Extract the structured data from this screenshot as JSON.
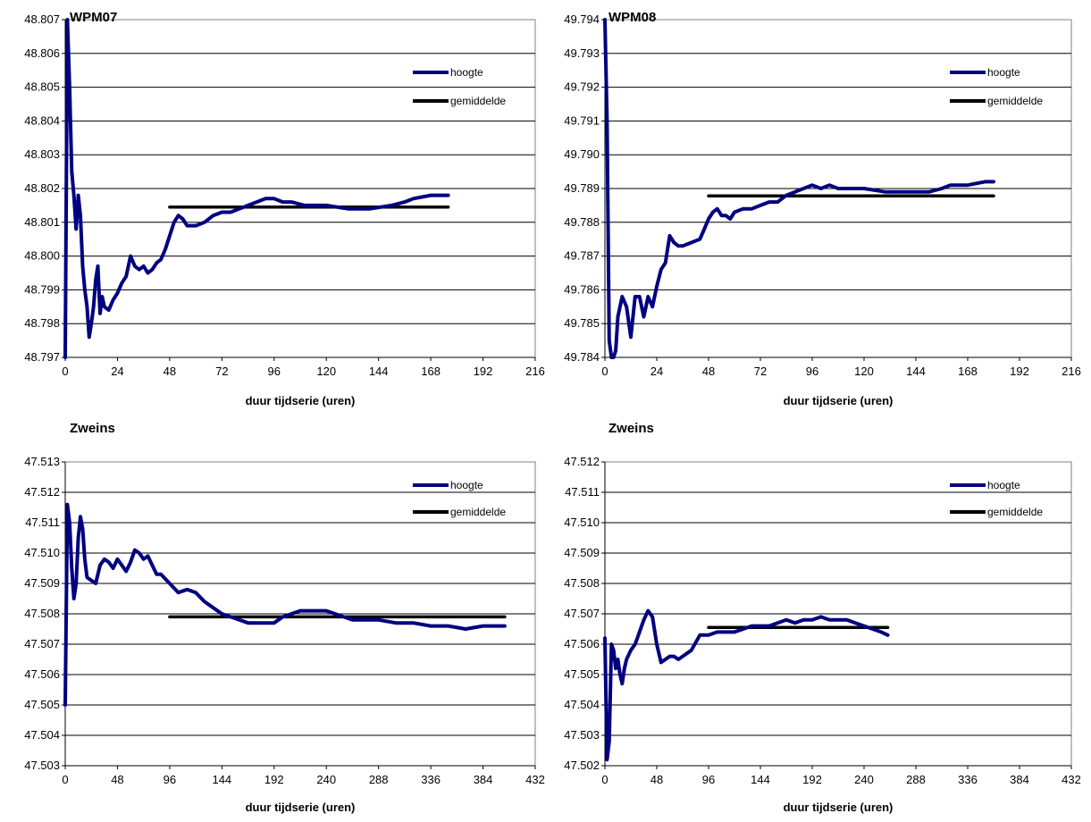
{
  "chart_data": [
    {
      "type": "line",
      "title": "WPM07",
      "xlabel": "duur tijdserie (uren)",
      "ylabel": "",
      "xlim": [
        0,
        216
      ],
      "ylim": [
        48.797,
        48.807
      ],
      "xticks": [
        "0",
        "24",
        "48",
        "72",
        "96",
        "120",
        "144",
        "168",
        "192",
        "216"
      ],
      "yticks": [
        "48.807",
        "48.806",
        "48.805",
        "48.804",
        "48.803",
        "48.802",
        "48.801",
        "48.800",
        "48.799",
        "48.798",
        "48.797"
      ],
      "grid": "horizontal",
      "legend_position": "top-right",
      "series": [
        {
          "name": "hoogte",
          "color": "#000080",
          "x": [
            0,
            1,
            2,
            3,
            4,
            5,
            6,
            7,
            8,
            9,
            10,
            11,
            12,
            13,
            14,
            15,
            16,
            17,
            18,
            20,
            22,
            24,
            26,
            28,
            30,
            32,
            34,
            36,
            38,
            40,
            42,
            44,
            46,
            48,
            50,
            52,
            54,
            56,
            60,
            64,
            68,
            72,
            76,
            80,
            84,
            88,
            92,
            96,
            100,
            104,
            110,
            120,
            130,
            140,
            150,
            156,
            160,
            168,
            176
          ],
          "y": [
            48.797,
            48.807,
            48.805,
            48.8025,
            48.8018,
            48.8008,
            48.8018,
            48.8012,
            48.7997,
            48.799,
            48.7985,
            48.7976,
            48.798,
            48.7985,
            48.7993,
            48.7997,
            48.7983,
            48.7988,
            48.7985,
            48.7984,
            48.7987,
            48.7989,
            48.7992,
            48.7994,
            48.8,
            48.7997,
            48.7996,
            48.7997,
            48.7995,
            48.7996,
            48.7998,
            48.7999,
            48.8002,
            48.8006,
            48.801,
            48.8012,
            48.8011,
            48.8009,
            48.8009,
            48.801,
            48.8012,
            48.8013,
            48.8013,
            48.8014,
            48.8015,
            48.8016,
            48.8017,
            48.8017,
            48.8016,
            48.8016,
            48.8015,
            48.8015,
            48.8014,
            48.8014,
            48.8015,
            48.8016,
            48.8017,
            48.8018,
            48.8018
          ]
        },
        {
          "name": "gemiddelde",
          "color": "#000000",
          "x": [
            48,
            176
          ],
          "y": [
            48.80145,
            48.80145
          ]
        }
      ]
    },
    {
      "type": "line",
      "title": "WPM08",
      "xlabel": "duur tijdserie (uren)",
      "ylabel": "",
      "xlim": [
        0,
        216
      ],
      "ylim": [
        49.784,
        49.794
      ],
      "xticks": [
        "0",
        "24",
        "48",
        "72",
        "96",
        "120",
        "144",
        "168",
        "192",
        "216"
      ],
      "yticks": [
        "49.794",
        "49.793",
        "49.792",
        "49.791",
        "49.790",
        "49.789",
        "49.788",
        "49.787",
        "49.786",
        "49.785",
        "49.784"
      ],
      "grid": "horizontal",
      "legend_position": "top-right",
      "series": [
        {
          "name": "hoogte",
          "color": "#000080",
          "x": [
            0,
            1,
            2,
            3,
            4,
            5,
            6,
            8,
            10,
            12,
            14,
            16,
            18,
            20,
            22,
            24,
            26,
            28,
            30,
            32,
            34,
            36,
            40,
            44,
            46,
            48,
            50,
            52,
            54,
            56,
            58,
            60,
            64,
            68,
            72,
            76,
            80,
            84,
            88,
            92,
            96,
            100,
            104,
            108,
            112,
            120,
            130,
            140,
            150,
            156,
            160,
            168,
            176,
            180
          ],
          "y": [
            49.794,
            49.791,
            49.7845,
            49.784,
            49.784,
            49.7842,
            49.7852,
            49.7858,
            49.7855,
            49.7846,
            49.7858,
            49.7858,
            49.7852,
            49.7858,
            49.7855,
            49.7861,
            49.7866,
            49.7868,
            49.7876,
            49.7874,
            49.7873,
            49.7873,
            49.7874,
            49.7875,
            49.7878,
            49.7881,
            49.7883,
            49.7884,
            49.7882,
            49.7882,
            49.7881,
            49.7883,
            49.7884,
            49.7884,
            49.7885,
            49.7886,
            49.7886,
            49.7888,
            49.7889,
            49.789,
            49.7891,
            49.789,
            49.7891,
            49.789,
            49.789,
            49.789,
            49.7889,
            49.7889,
            49.7889,
            49.789,
            49.7891,
            49.7891,
            49.7892,
            49.7892
          ]
        },
        {
          "name": "gemiddelde",
          "color": "#000000",
          "x": [
            48,
            180
          ],
          "y": [
            49.78878,
            49.78878
          ]
        }
      ]
    },
    {
      "type": "line",
      "title": "Zweins",
      "xlabel": "duur tijdserie (uren)",
      "ylabel": "",
      "xlim": [
        0,
        432
      ],
      "ylim": [
        47.503,
        47.513
      ],
      "xticks": [
        "0",
        "48",
        "96",
        "144",
        "192",
        "240",
        "288",
        "336",
        "384",
        "432"
      ],
      "yticks": [
        "47.513",
        "47.512",
        "47.511",
        "47.510",
        "47.509",
        "47.508",
        "47.507",
        "47.506",
        "47.505",
        "47.504",
        "47.503"
      ],
      "grid": "horizontal",
      "legend_position": "top-right",
      "series": [
        {
          "name": "hoogte",
          "color": "#000080",
          "x": [
            0,
            2,
            4,
            6,
            8,
            10,
            12,
            14,
            16,
            18,
            20,
            24,
            28,
            32,
            36,
            40,
            44,
            48,
            52,
            56,
            60,
            64,
            68,
            72,
            76,
            80,
            84,
            88,
            96,
            104,
            112,
            120,
            128,
            136,
            144,
            152,
            160,
            168,
            176,
            184,
            192,
            200,
            208,
            216,
            224,
            232,
            240,
            248,
            256,
            264,
            272,
            288,
            304,
            320,
            336,
            352,
            368,
            384,
            400,
            404
          ],
          "y": [
            47.505,
            47.5116,
            47.511,
            47.5095,
            47.5085,
            47.509,
            47.5105,
            47.5112,
            47.5108,
            47.5098,
            47.5092,
            47.5091,
            47.509,
            47.5096,
            47.5098,
            47.5097,
            47.5095,
            47.5098,
            47.5096,
            47.5094,
            47.5097,
            47.5101,
            47.51,
            47.5098,
            47.5099,
            47.5096,
            47.5093,
            47.5093,
            47.509,
            47.5087,
            47.5088,
            47.5087,
            47.5084,
            47.5082,
            47.508,
            47.5079,
            47.5078,
            47.5077,
            47.5077,
            47.5077,
            47.5077,
            47.5079,
            47.508,
            47.5081,
            47.5081,
            47.5081,
            47.5081,
            47.508,
            47.5079,
            47.5078,
            47.5078,
            47.5078,
            47.5077,
            47.5077,
            47.5076,
            47.5076,
            47.5075,
            47.5076,
            47.5076,
            47.5076
          ]
        },
        {
          "name": "gemiddelde",
          "color": "#000000",
          "x": [
            96,
            404
          ],
          "y": [
            47.5079,
            47.5079
          ]
        }
      ]
    },
    {
      "type": "line",
      "title": "Zweins",
      "xlabel": "duur tijdserie (uren)",
      "ylabel": "",
      "xlim": [
        0,
        432
      ],
      "ylim": [
        47.502,
        47.512
      ],
      "xticks": [
        "0",
        "48",
        "96",
        "144",
        "192",
        "240",
        "288",
        "336",
        "384",
        "432"
      ],
      "yticks": [
        "47.512",
        "47.511",
        "47.510",
        "47.509",
        "47.508",
        "47.507",
        "47.506",
        "47.505",
        "47.504",
        "47.503",
        "47.502"
      ],
      "grid": "horizontal",
      "legend_position": "top-right",
      "series": [
        {
          "name": "hoogte",
          "color": "#000080",
          "x": [
            0,
            2,
            4,
            6,
            8,
            10,
            12,
            14,
            16,
            18,
            20,
            24,
            28,
            32,
            36,
            40,
            44,
            48,
            52,
            56,
            60,
            64,
            68,
            72,
            80,
            88,
            96,
            104,
            112,
            120,
            128,
            136,
            144,
            152,
            160,
            168,
            176,
            184,
            192,
            200,
            208,
            216,
            224,
            232,
            240,
            248,
            256,
            262
          ],
          "y": [
            47.5062,
            47.5022,
            47.5028,
            47.506,
            47.5058,
            47.5052,
            47.5055,
            47.505,
            47.5047,
            47.5052,
            47.5055,
            47.5058,
            47.506,
            47.5064,
            47.5068,
            47.5071,
            47.5069,
            47.506,
            47.5054,
            47.5055,
            47.5056,
            47.5056,
            47.5055,
            47.5056,
            47.5058,
            47.5063,
            47.5063,
            47.5064,
            47.5064,
            47.5064,
            47.5065,
            47.5066,
            47.5066,
            47.5066,
            47.5067,
            47.5068,
            47.5067,
            47.5068,
            47.5068,
            47.5069,
            47.5068,
            47.5068,
            47.5068,
            47.5067,
            47.5066,
            47.5065,
            47.5064,
            47.5063
          ]
        },
        {
          "name": "gemiddelde",
          "color": "#000000",
          "x": [
            96,
            262
          ],
          "y": [
            47.50655,
            47.50655
          ]
        }
      ]
    }
  ]
}
